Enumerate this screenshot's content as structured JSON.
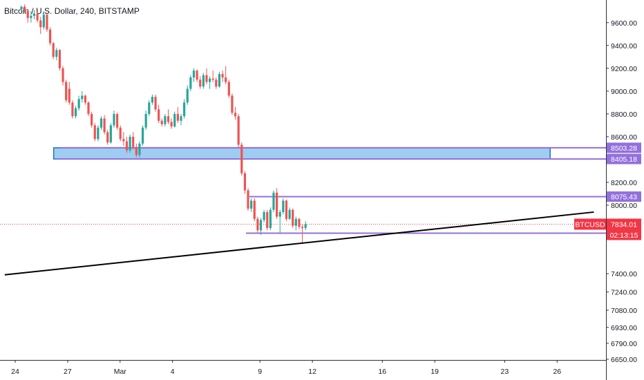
{
  "chart_data": {
    "type": "candlestick",
    "title": "Bitcoin / U.S. Dollar, 240, BITSTAMP",
    "symbol": "BTCUSD",
    "ylim": [
      6650,
      9750
    ],
    "y_ticks": [
      9600,
      9400,
      9200,
      9000,
      8800,
      8600,
      8200,
      8000,
      7400,
      7240,
      7080,
      6930,
      6790,
      6650
    ],
    "y_tick_labels": [
      "9600.00",
      "9400.00",
      "9200.00",
      "9000.00",
      "8800.00",
      "8600.00",
      "8200.00",
      "8000.00",
      "7400.00",
      "7240.00",
      "7080.00",
      "6930.00",
      "6790.00",
      "6650.00"
    ],
    "x_ticks": [
      {
        "day": 0,
        "label": "24"
      },
      {
        "day": 3,
        "label": "27"
      },
      {
        "day": 6,
        "label": "Mar"
      },
      {
        "day": 9,
        "label": "4"
      },
      {
        "day": 14,
        "label": "9"
      },
      {
        "day": 17,
        "label": "12"
      },
      {
        "day": 21,
        "label": "16"
      },
      {
        "day": 24,
        "label": "19"
      },
      {
        "day": 28,
        "label": "23"
      },
      {
        "day": 31,
        "label": "26"
      }
    ],
    "candles": [
      [
        9720,
        9750,
        9690,
        9740
      ],
      [
        9740,
        9760,
        9690,
        9700
      ],
      [
        9700,
        9720,
        9600,
        9640
      ],
      [
        9640,
        9700,
        9600,
        9660
      ],
      [
        9660,
        9710,
        9630,
        9680
      ],
      [
        9680,
        9720,
        9600,
        9620
      ],
      [
        9620,
        9650,
        9500,
        9560
      ],
      [
        9560,
        9700,
        9540,
        9670
      ],
      [
        9670,
        9690,
        9520,
        9540
      ],
      [
        9540,
        9560,
        9400,
        9420
      ],
      [
        9420,
        9430,
        9280,
        9300
      ],
      [
        9300,
        9380,
        9270,
        9360
      ],
      [
        9360,
        9370,
        9180,
        9200
      ],
      [
        9200,
        9220,
        9050,
        9080
      ],
      [
        9080,
        9100,
        8900,
        8920
      ],
      [
        9020,
        9080,
        8880,
        8900
      ],
      [
        8900,
        8920,
        8760,
        8780
      ],
      [
        8780,
        8870,
        8760,
        8850
      ],
      [
        8850,
        8960,
        8830,
        8930
      ],
      [
        8930,
        9000,
        8900,
        8960
      ],
      [
        8960,
        8970,
        8880,
        8900
      ],
      [
        8900,
        8910,
        8780,
        8800
      ],
      [
        8800,
        8820,
        8680,
        8700
      ],
      [
        8700,
        8720,
        8560,
        8580
      ],
      [
        8580,
        8700,
        8560,
        8680
      ],
      [
        8680,
        8780,
        8660,
        8760
      ],
      [
        8760,
        8790,
        8620,
        8640
      ],
      [
        8640,
        8660,
        8530,
        8550
      ],
      [
        8550,
        8720,
        8540,
        8700
      ],
      [
        8700,
        8830,
        8680,
        8800
      ],
      [
        8800,
        8810,
        8660,
        8680
      ],
      [
        8680,
        8700,
        8560,
        8580
      ],
      [
        8580,
        8640,
        8520,
        8560
      ],
      [
        8560,
        8600,
        8460,
        8480
      ],
      [
        8480,
        8620,
        8460,
        8600
      ],
      [
        8600,
        8640,
        8490,
        8510
      ],
      [
        8510,
        8540,
        8420,
        8440
      ],
      [
        8440,
        8560,
        8420,
        8540
      ],
      [
        8540,
        8700,
        8520,
        8680
      ],
      [
        8680,
        8830,
        8660,
        8800
      ],
      [
        8800,
        8920,
        8780,
        8900
      ],
      [
        8900,
        8970,
        8880,
        8950
      ],
      [
        8950,
        8970,
        8820,
        8840
      ],
      [
        8840,
        8880,
        8720,
        8740
      ],
      [
        8740,
        8760,
        8690,
        8710
      ],
      [
        8710,
        8800,
        8690,
        8780
      ],
      [
        8780,
        8840,
        8710,
        8730
      ],
      [
        8730,
        8760,
        8670,
        8690
      ],
      [
        8690,
        8820,
        8680,
        8800
      ],
      [
        8800,
        8860,
        8720,
        8740
      ],
      [
        8740,
        8800,
        8700,
        8780
      ],
      [
        8780,
        8930,
        8760,
        8900
      ],
      [
        8900,
        9050,
        8880,
        9020
      ],
      [
        9020,
        9140,
        9000,
        9120
      ],
      [
        9120,
        9200,
        9080,
        9180
      ],
      [
        9180,
        9190,
        9080,
        9100
      ],
      [
        9100,
        9130,
        9020,
        9040
      ],
      [
        9040,
        9160,
        9020,
        9140
      ],
      [
        9140,
        9200,
        9060,
        9080
      ],
      [
        9080,
        9130,
        9020,
        9110
      ],
      [
        9110,
        9180,
        9080,
        9100
      ],
      [
        9100,
        9120,
        9020,
        9040
      ],
      [
        9040,
        9170,
        9030,
        9150
      ],
      [
        9150,
        9180,
        9080,
        9120
      ],
      [
        9120,
        9220,
        9060,
        9080
      ],
      [
        9080,
        9100,
        8940,
        8960
      ],
      [
        8960,
        8980,
        8790,
        8810
      ],
      [
        8810,
        8860,
        8750,
        8780
      ],
      [
        8780,
        8800,
        8500,
        8530
      ],
      [
        8530,
        8550,
        8260,
        8280
      ],
      [
        8280,
        8300,
        8100,
        8130
      ],
      [
        8130,
        8150,
        7950,
        7970
      ],
      [
        7970,
        8060,
        7940,
        8040
      ],
      [
        8040,
        8060,
        7860,
        7880
      ],
      [
        7880,
        7900,
        7760,
        7780
      ],
      [
        7780,
        7890,
        7740,
        7870
      ],
      [
        7870,
        7960,
        7850,
        7940
      ],
      [
        7940,
        7960,
        7780,
        7800
      ],
      [
        7800,
        7980,
        7780,
        7960
      ],
      [
        7960,
        8130,
        7940,
        8110
      ],
      [
        8110,
        8150,
        7880,
        7900
      ],
      [
        7900,
        7960,
        7760,
        7940
      ],
      [
        7940,
        8060,
        7920,
        8040
      ],
      [
        8040,
        8050,
        7860,
        7880
      ],
      [
        7880,
        7980,
        7870,
        7960
      ],
      [
        7960,
        7970,
        7800,
        7820
      ],
      [
        7820,
        7900,
        7780,
        7880
      ],
      [
        7880,
        7890,
        7790,
        7810
      ],
      [
        7810,
        7830,
        7660,
        7800
      ],
      [
        7800,
        7860,
        7780,
        7834
      ]
    ],
    "zone": {
      "top": 8503.28,
      "bottom": 8405.18
    },
    "levels": [
      {
        "value": 8503.28,
        "label": "8503.28"
      },
      {
        "value": 8405.18,
        "label": "8405.18"
      },
      {
        "value": 8075.43,
        "label": "8075.43"
      },
      {
        "value": 7755.35,
        "label": "7755.35"
      }
    ],
    "trendline": {
      "start": {
        "day": -0.6,
        "value": 7390
      },
      "end": {
        "day": 33.1,
        "value": 7940
      }
    },
    "last_price": {
      "value": 7834.01,
      "label": "7834.01",
      "symbol_tag": "BTCUSD",
      "countdown": "02:13:15"
    },
    "colors": {
      "up": "#26a69a",
      "down": "#ef5350",
      "level": "#9370db",
      "zone_fill": "#9fcdf2",
      "zone_border": "#2a6fb8",
      "trend": "#000000",
      "price": "#f23645",
      "axis_text": "#131722"
    }
  }
}
